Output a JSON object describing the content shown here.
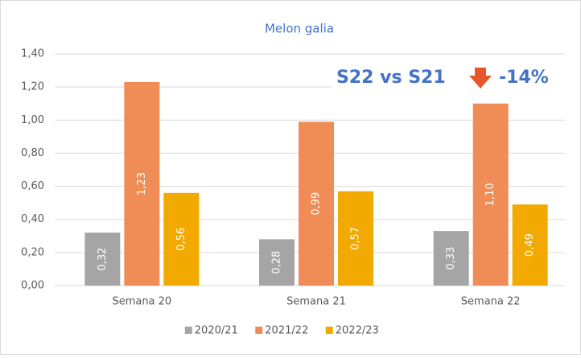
{
  "chart_data": {
    "type": "bar",
    "title": "Melon galia",
    "categories": [
      "Semana 20",
      "Semana 21",
      "Semana 22"
    ],
    "series": [
      {
        "name": "2020/21",
        "color": "#a5a5a5",
        "values": [
          0.32,
          0.28,
          0.33
        ],
        "value_labels": [
          "0,32",
          "0,28",
          "0,33"
        ]
      },
      {
        "name": "2021/22",
        "color": "#f08c55",
        "values": [
          1.23,
          0.99,
          1.1
        ],
        "value_labels": [
          "1,23",
          "0,99",
          "1,10"
        ]
      },
      {
        "name": "2022/23",
        "color": "#f2a900",
        "values": [
          0.56,
          0.57,
          0.49
        ],
        "value_labels": [
          "0,56",
          "0,57",
          "0,49"
        ]
      }
    ],
    "ylim": [
      0,
      1.4
    ],
    "yticks": [
      {
        "value": 0,
        "label": "0,00"
      },
      {
        "value": 0.2,
        "label": "0,20"
      },
      {
        "value": 0.4,
        "label": "0,40"
      },
      {
        "value": 0.6,
        "label": "0,60"
      },
      {
        "value": 0.8,
        "label": "0,80"
      },
      {
        "value": 1.0,
        "label": "1,00"
      },
      {
        "value": 1.2,
        "label": "1,20"
      },
      {
        "value": 1.4,
        "label": "1,40"
      }
    ],
    "grid": true,
    "legend": "bottom",
    "annotations": [
      "S22 vs S21",
      "-14%"
    ]
  }
}
